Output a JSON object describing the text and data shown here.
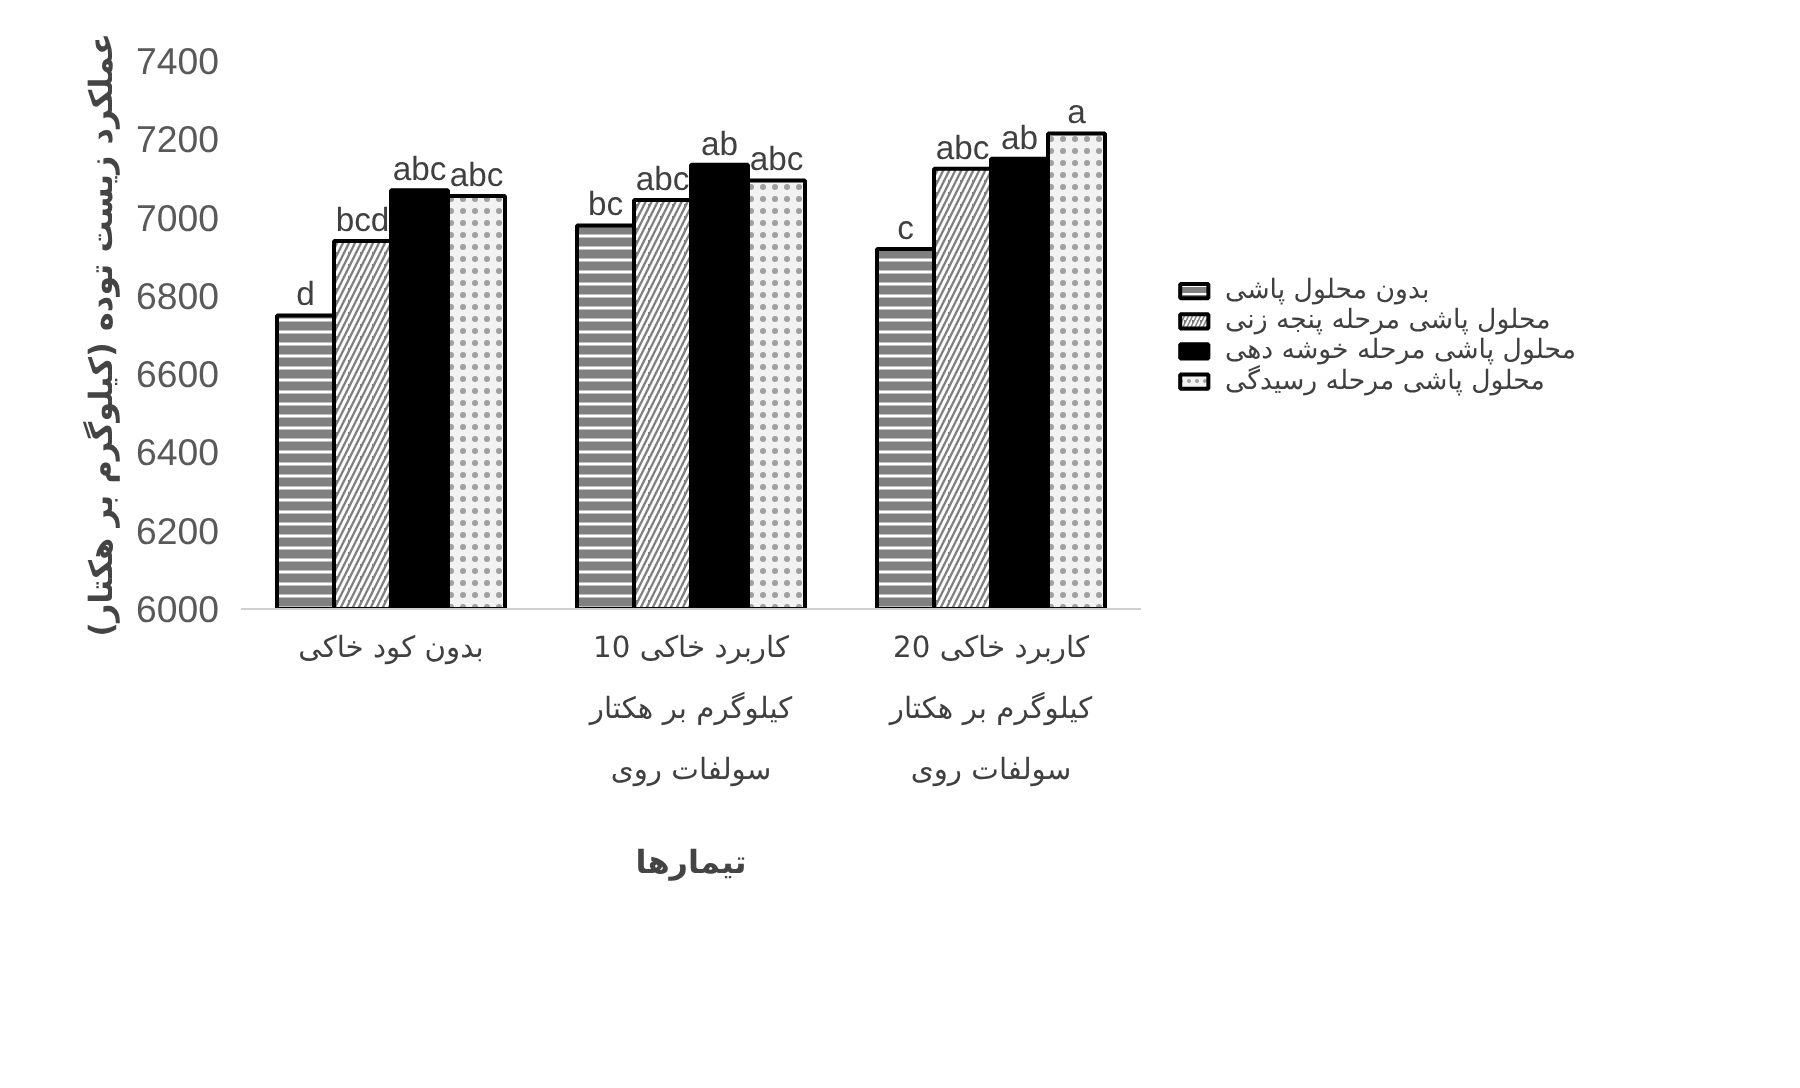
{
  "chart_data": {
    "type": "bar",
    "ylabel": "عملکرد زیست توده (کیلوگرم بر هکتار)",
    "xlabel": "تیمارها",
    "categories": [
      "بدون کود خاکی",
      "کاربرد خاکی 10 کیلوگرم بر هکتار سولفات روی",
      "کاربرد خاکی 20 کیلوگرم بر هکتار سولفات روی"
    ],
    "series": [
      {
        "name": "بدون محلول پاشی",
        "color": "#808080",
        "values": [
          6750,
          6980,
          6920
        ],
        "value_labels": [
          "d",
          "bc",
          "c"
        ]
      },
      {
        "name": "محلول پاشی مرحله پنجه زنی",
        "color": "#808080",
        "values": [
          6940,
          7045,
          7125
        ],
        "value_labels": [
          "bcd",
          "abc",
          "abc"
        ]
      },
      {
        "name": "محلول پاشی مرحله خوشه دهی",
        "color": "#000000",
        "values": [
          7070,
          7135,
          7150
        ],
        "value_labels": [
          "abc",
          "ab",
          "ab"
        ]
      },
      {
        "name": "محلول پاشی مرحله رسیدگی",
        "color": "#f2f2f2",
        "values": [
          7055,
          7095,
          7215
        ],
        "value_labels": [
          "abc",
          "abc",
          "a"
        ]
      }
    ],
    "ylim": [
      6000,
      7400
    ],
    "yticks": [
      6000,
      6200,
      6400,
      6600,
      6800,
      7000,
      7200,
      7400
    ],
    "legend": "right"
  }
}
